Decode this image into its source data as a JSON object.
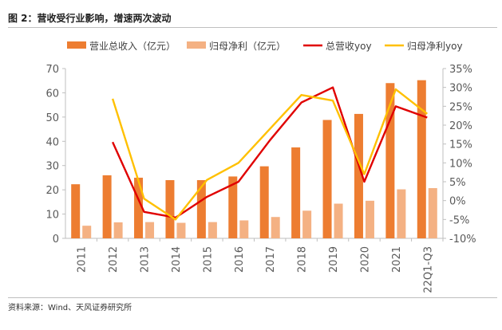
{
  "figure": {
    "title": "图 2：营收受行业影响，增速两次波动",
    "source": "资料来源：Wind、天风证券研究所"
  },
  "colors": {
    "revenue": "#ed7d31",
    "profit": "#f4b183",
    "revenue_yoy": "#e00000",
    "profit_yoy": "#ffc000",
    "axis": "#bfbfbf"
  },
  "chart_data": {
    "type": "bar",
    "categories": [
      "2011",
      "2012",
      "2013",
      "2014",
      "2015",
      "2016",
      "2017",
      "2018",
      "2019",
      "2020",
      "2021",
      "22Q1-Q3"
    ],
    "series": [
      {
        "name": "营业总收入（亿元）",
        "kind": "bar",
        "axis": "left",
        "values": [
          22.3,
          26.0,
          25.0,
          24.0,
          24.0,
          25.5,
          29.7,
          37.5,
          48.8,
          51.3,
          64.0,
          65.2
        ]
      },
      {
        "name": "归母净利（亿元）",
        "kind": "bar",
        "axis": "left",
        "values": [
          5.2,
          6.6,
          6.7,
          6.4,
          6.7,
          7.4,
          8.8,
          11.4,
          14.3,
          15.5,
          20.2,
          20.7
        ]
      },
      {
        "name": "总营收yoy",
        "kind": "line",
        "axis": "right",
        "values": [
          null,
          15.5,
          -3.0,
          -4.5,
          1.0,
          5.0,
          16.0,
          26.0,
          30.0,
          5.0,
          25.0,
          22.0
        ]
      },
      {
        "name": "归母净利yoy",
        "kind": "line",
        "axis": "right",
        "values": [
          null,
          27.0,
          0.5,
          -5.0,
          5.5,
          10.0,
          19.0,
          28.0,
          26.5,
          7.0,
          29.5,
          23.0
        ]
      }
    ],
    "ylim": [
      0,
      70
    ],
    "yticks": [
      "0",
      "10",
      "20",
      "30",
      "40",
      "50",
      "60",
      "70"
    ],
    "y2lim": [
      -10,
      35
    ],
    "y2ticks": [
      "-10%",
      "-5%",
      "0%",
      "5%",
      "10%",
      "15%",
      "20%",
      "25%",
      "30%",
      "35%"
    ],
    "grid": false,
    "legend": "top"
  }
}
